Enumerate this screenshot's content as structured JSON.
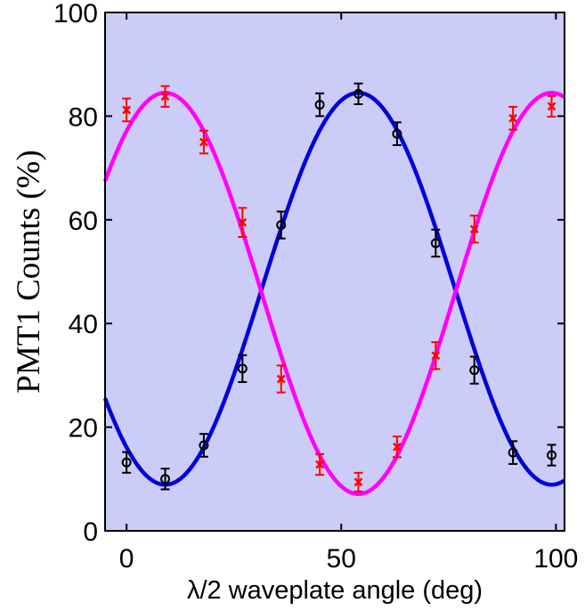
{
  "chart_data": {
    "type": "scatter",
    "xlabel": "λ/2 waveplate angle (deg)",
    "ylabel": "PMT1 Counts (%)",
    "xlim": [
      -5,
      102
    ],
    "ylim": [
      0,
      100
    ],
    "xticks": [
      0,
      50,
      100
    ],
    "yticks": [
      0,
      20,
      40,
      60,
      80,
      100
    ],
    "grid": false,
    "colors": {
      "background": "#ccccf8",
      "series_black": "#000000",
      "series_red": "#ff0000",
      "fit_blue": "#0000dd",
      "fit_magenta": "#ff00ff"
    },
    "series": [
      {
        "name": "black circles",
        "marker": "circle",
        "color": "#000000",
        "x": [
          0,
          9,
          18,
          27,
          36,
          45,
          54,
          63,
          72,
          81,
          90,
          99
        ],
        "y": [
          13.2,
          10.0,
          16.5,
          31.3,
          59.0,
          82.2,
          84.3,
          76.6,
          55.5,
          31.0,
          15.1,
          14.6
        ],
        "err": [
          2.0,
          2.0,
          2.2,
          2.6,
          2.6,
          2.2,
          2.0,
          2.2,
          2.6,
          2.6,
          2.2,
          2.0
        ]
      },
      {
        "name": "red crosses",
        "marker": "x",
        "color": "#ff0000",
        "x": [
          0,
          9,
          18,
          27,
          36,
          45,
          54,
          63,
          72,
          81,
          90,
          99
        ],
        "y": [
          81.2,
          83.8,
          75.0,
          59.5,
          29.3,
          12.8,
          9.4,
          16.2,
          33.8,
          58.2,
          79.6,
          81.9
        ],
        "err": [
          2.2,
          2.0,
          2.2,
          2.8,
          2.6,
          2.0,
          1.8,
          2.0,
          2.6,
          2.6,
          2.2,
          2.0
        ]
      }
    ],
    "fits": [
      {
        "name": "blue fit",
        "color": "#0000dd",
        "offset": 46.7,
        "amplitude": -37.8,
        "period": 90,
        "phase": 9.0
      },
      {
        "name": "magenta fit",
        "color": "#ff00ff",
        "offset": 45.8,
        "amplitude": 38.7,
        "period": 90,
        "phase": 9.0
      }
    ]
  }
}
